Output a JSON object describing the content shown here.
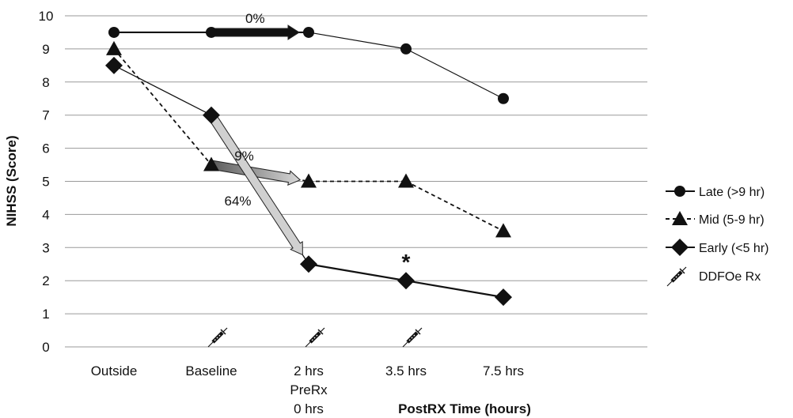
{
  "chart_data": {
    "type": "line",
    "title": "",
    "ylabel": "NIHSS (Score)",
    "xlabel": "PostRX Time (hours)",
    "ylim": [
      0,
      10
    ],
    "yticks": [
      "0",
      "1",
      "2",
      "3",
      "4",
      "5",
      "6",
      "7",
      "8",
      "9",
      "10"
    ],
    "grid": true,
    "legend_position": "right",
    "categories": [
      "Outside",
      "Baseline",
      "2 hrs",
      "3.5 hrs",
      "7.5 hrs"
    ],
    "category_sublabels": [
      "PreRx",
      "0 hrs"
    ],
    "series": [
      {
        "name": "Late (>9 hr)",
        "marker": "circle",
        "line": "solid",
        "values": [
          9.5,
          9.5,
          9.5,
          9.0,
          7.5
        ]
      },
      {
        "name": "Mid (5-9 hr)",
        "marker": "triangle",
        "line": "dashed",
        "values": [
          9.0,
          5.5,
          5.0,
          5.0,
          3.5
        ]
      },
      {
        "name": "Early (<5 hr)",
        "marker": "diamond",
        "line": "solid",
        "values": [
          8.5,
          7.0,
          2.5,
          2.0,
          1.5
        ]
      }
    ],
    "treatment": {
      "name": "DDFOe Rx",
      "icon": "syringe-icon",
      "at_categories": [
        "Baseline",
        "2 hrs",
        "3.5 hrs"
      ]
    },
    "annotations": [
      {
        "text": "0%",
        "series": "Late (>9 hr)",
        "from": "Baseline",
        "to": "2 hrs",
        "color": "#111111"
      },
      {
        "text": "9%",
        "series": "Mid (5-9 hr)",
        "from": "Baseline",
        "to": "2 hrs",
        "color": "#8a8a8a"
      },
      {
        "text": "64%",
        "series": "Early (<5 hr)",
        "from": "Baseline",
        "to": "2 hrs",
        "color": "#d0d0d0"
      }
    ],
    "significance": {
      "text": "*",
      "series": "Early (<5 hr)",
      "category": "3.5 hrs"
    }
  }
}
